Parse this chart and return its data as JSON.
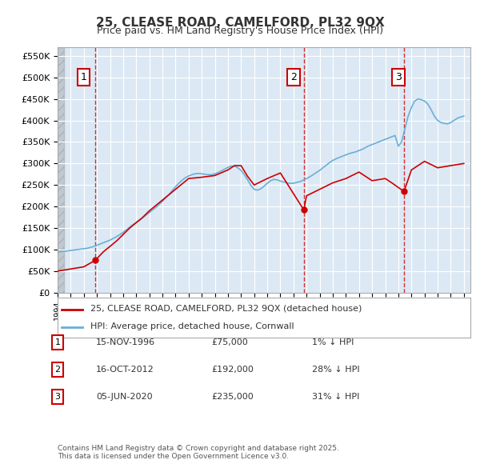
{
  "title": "25, CLEASE ROAD, CAMELFORD, PL32 9QX",
  "subtitle": "Price paid vs. HM Land Registry's House Price Index (HPI)",
  "background_color": "#dce9f5",
  "plot_bg_color": "#dce9f5",
  "ylim": [
    0,
    570000
  ],
  "yticks": [
    0,
    50000,
    100000,
    150000,
    200000,
    250000,
    300000,
    350000,
    400000,
    450000,
    500000,
    550000
  ],
  "ytick_labels": [
    "£0",
    "£50K",
    "£100K",
    "£150K",
    "£200K",
    "£250K",
    "£300K",
    "£350K",
    "£400K",
    "£450K",
    "£500K",
    "£550K"
  ],
  "xlim_start": 1994,
  "xlim_end": 2025.5,
  "sale_dates": [
    1996.87,
    2012.79,
    2020.43
  ],
  "sale_prices": [
    75000,
    192000,
    235000
  ],
  "sale_labels": [
    "1",
    "2",
    "3"
  ],
  "sale_label_dates": [
    1996.0,
    2012.0,
    2020.0
  ],
  "hpi_line_color": "#6baed6",
  "price_line_color": "#cc0000",
  "sale_marker_color": "#cc0000",
  "dashed_vline_color": "#cc0000",
  "legend_label_price": "25, CLEASE ROAD, CAMELFORD, PL32 9QX (detached house)",
  "legend_label_hpi": "HPI: Average price, detached house, Cornwall",
  "footer_text": "Contains HM Land Registry data © Crown copyright and database right 2025.\nThis data is licensed under the Open Government Licence v3.0.",
  "sale_info": [
    {
      "num": "1",
      "date": "15-NOV-1996",
      "price": "£75,000",
      "hpi_text": "1% ↓ HPI"
    },
    {
      "num": "2",
      "date": "16-OCT-2012",
      "price": "£192,000",
      "hpi_text": "28% ↓ HPI"
    },
    {
      "num": "3",
      "date": "05-JUN-2020",
      "price": "£235,000",
      "hpi_text": "31% ↓ HPI"
    }
  ],
  "hpi_data_x": [
    1994.0,
    1994.25,
    1994.5,
    1994.75,
    1995.0,
    1995.25,
    1995.5,
    1995.75,
    1996.0,
    1996.25,
    1996.5,
    1996.75,
    1997.0,
    1997.25,
    1997.5,
    1997.75,
    1998.0,
    1998.25,
    1998.5,
    1998.75,
    1999.0,
    1999.25,
    1999.5,
    1999.75,
    2000.0,
    2000.25,
    2000.5,
    2000.75,
    2001.0,
    2001.25,
    2001.5,
    2001.75,
    2002.0,
    2002.25,
    2002.5,
    2002.75,
    2003.0,
    2003.25,
    2003.5,
    2003.75,
    2004.0,
    2004.25,
    2004.5,
    2004.75,
    2005.0,
    2005.25,
    2005.5,
    2005.75,
    2006.0,
    2006.25,
    2006.5,
    2006.75,
    2007.0,
    2007.25,
    2007.5,
    2007.75,
    2008.0,
    2008.25,
    2008.5,
    2008.75,
    2009.0,
    2009.25,
    2009.5,
    2009.75,
    2010.0,
    2010.25,
    2010.5,
    2010.75,
    2011.0,
    2011.25,
    2011.5,
    2011.75,
    2012.0,
    2012.25,
    2012.5,
    2012.75,
    2013.0,
    2013.25,
    2013.5,
    2013.75,
    2014.0,
    2014.25,
    2014.5,
    2014.75,
    2015.0,
    2015.25,
    2015.5,
    2015.75,
    2016.0,
    2016.25,
    2016.5,
    2016.75,
    2017.0,
    2017.25,
    2017.5,
    2017.75,
    2018.0,
    2018.25,
    2018.5,
    2018.75,
    2019.0,
    2019.25,
    2019.5,
    2019.75,
    2020.0,
    2020.25,
    2020.5,
    2020.75,
    2021.0,
    2021.25,
    2021.5,
    2021.75,
    2022.0,
    2022.25,
    2022.5,
    2022.75,
    2023.0,
    2023.25,
    2023.5,
    2023.75,
    2024.0,
    2024.25,
    2024.5,
    2024.75,
    2025.0
  ],
  "hpi_data_y": [
    95000,
    95500,
    96000,
    97000,
    98000,
    99000,
    100000,
    101000,
    102000,
    103000,
    105000,
    107000,
    110000,
    113000,
    116000,
    119000,
    122000,
    126000,
    130000,
    135000,
    140000,
    146000,
    152000,
    158000,
    163000,
    168000,
    174000,
    180000,
    186000,
    192000,
    198000,
    205000,
    212000,
    220000,
    228000,
    237000,
    246000,
    254000,
    261000,
    267000,
    271000,
    274000,
    276000,
    277000,
    276000,
    275000,
    274000,
    274000,
    276000,
    279000,
    283000,
    287000,
    291000,
    294000,
    294000,
    290000,
    284000,
    274000,
    262000,
    249000,
    240000,
    238000,
    241000,
    247000,
    254000,
    260000,
    263000,
    262000,
    259000,
    257000,
    255000,
    254000,
    254000,
    256000,
    258000,
    261000,
    265000,
    269000,
    274000,
    279000,
    284000,
    290000,
    296000,
    302000,
    307000,
    311000,
    314000,
    317000,
    320000,
    323000,
    325000,
    327000,
    330000,
    333000,
    337000,
    341000,
    344000,
    347000,
    350000,
    353000,
    356000,
    359000,
    362000,
    365000,
    340000,
    350000,
    380000,
    410000,
    430000,
    445000,
    450000,
    448000,
    445000,
    438000,
    425000,
    410000,
    400000,
    395000,
    393000,
    392000,
    395000,
    400000,
    405000,
    408000,
    410000
  ],
  "price_data_x": [
    1994.0,
    1996.0,
    1996.87,
    1997.5,
    1998.5,
    1999.5,
    2000.5,
    2001.0,
    2002.0,
    2003.0,
    2004.0,
    2005.0,
    2006.0,
    2007.0,
    2007.5,
    2008.0,
    2008.5,
    2009.0,
    2010.0,
    2011.0,
    2012.79,
    2013.0,
    2014.0,
    2015.0,
    2016.0,
    2017.0,
    2018.0,
    2019.0,
    2019.5,
    2020.43,
    2021.0,
    2022.0,
    2023.0,
    2024.0,
    2025.0
  ],
  "price_data_y": [
    50000,
    60000,
    75000,
    95000,
    120000,
    150000,
    175000,
    190000,
    215000,
    240000,
    265000,
    268000,
    272000,
    285000,
    295000,
    295000,
    270000,
    250000,
    265000,
    278000,
    192000,
    225000,
    240000,
    255000,
    265000,
    280000,
    260000,
    265000,
    255000,
    235000,
    285000,
    305000,
    290000,
    295000,
    300000
  ]
}
